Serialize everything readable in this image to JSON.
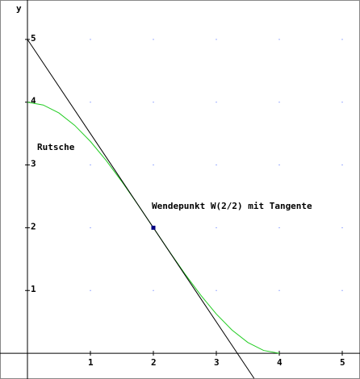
{
  "chart_data": {
    "type": "line",
    "y_label": "y",
    "xlim": [
      -0.436,
      5.282
    ],
    "ylim": [
      -0.41,
      5.628
    ],
    "xticks": [
      1,
      2,
      3,
      4,
      5
    ],
    "yticks": [
      1,
      2,
      3,
      4,
      5
    ],
    "grid": "dots",
    "annotations": [
      "Rutsche",
      "Wendepunkt W(2/2) mit Tangente"
    ],
    "series": [
      {
        "mode": "line",
        "color": "#22cc22",
        "x": [
          0,
          0.25,
          0.5,
          0.75,
          1,
          1.25,
          1.5,
          1.75,
          2,
          2.25,
          2.5,
          2.75,
          3,
          3.25,
          3.5,
          3.75,
          4
        ],
        "values": [
          4,
          3.955,
          3.828,
          3.631,
          3.375,
          3.072,
          2.734,
          2.373,
          2,
          1.627,
          1.266,
          0.928,
          0.625,
          0.369,
          0.172,
          0.045,
          0
        ]
      },
      {
        "mode": "line",
        "color": "#000000",
        "x": [
          0,
          3.6
        ],
        "values": [
          5,
          -0.4
        ]
      },
      {
        "mode": "point",
        "color": "#000080",
        "x": [
          2
        ],
        "values": [
          2
        ]
      }
    ]
  }
}
